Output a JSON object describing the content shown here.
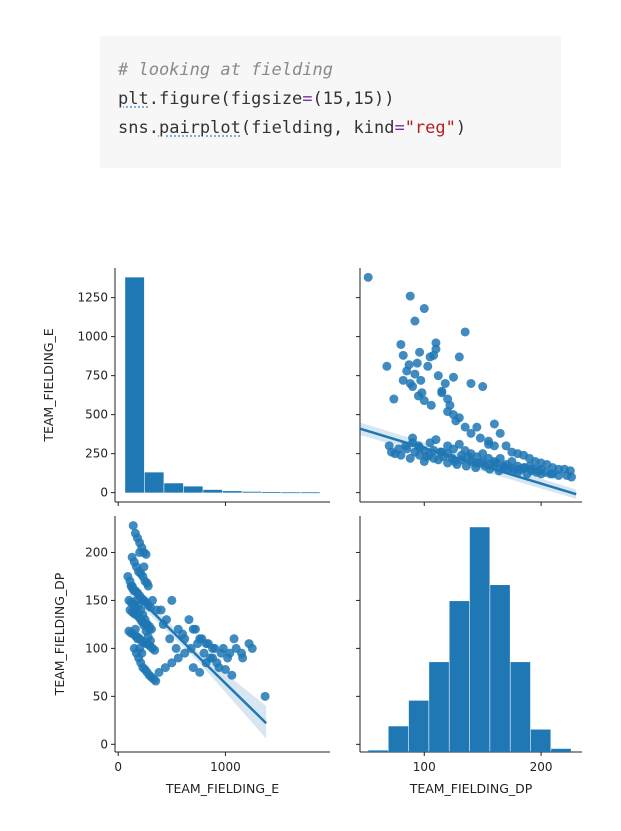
{
  "code": {
    "comment": "# looking at fielding",
    "line2": {
      "obj": "plt",
      "fn": "figure",
      "kw": "figsize",
      "args": "(15,15)"
    },
    "line3": {
      "obj": "sns",
      "fn": "pairplot",
      "arg": "fielding",
      "kw": "kind",
      "val": "\"reg\""
    }
  },
  "chart_data": {
    "type": "pairplot",
    "variables": [
      "TEAM_FIELDING_E",
      "TEAM_FIELDING_DP"
    ],
    "color": "#1f77b4",
    "panels": [
      {
        "id": "E-hist",
        "type": "bar",
        "title": "",
        "xlabel": "",
        "ylabel": "TEAM_FIELDING_E",
        "bins": [
          65,
          247,
          429,
          611,
          793,
          975,
          1157,
          1339,
          1521,
          1703,
          1885
        ],
        "counts": [
          1380,
          130,
          60,
          40,
          18,
          10,
          6,
          4,
          2,
          2
        ],
        "ylim": [
          -60,
          1440
        ],
        "yticks": [
          0,
          250,
          500,
          750,
          1000,
          1250
        ]
      },
      {
        "id": "E-vs-DP",
        "type": "scatter",
        "xvar": "TEAM_FIELDING_DP",
        "yvar": "TEAM_FIELDING_E",
        "xlim": [
          45,
          235
        ],
        "ylim": [
          -60,
          1440
        ],
        "x": [
          52,
          68,
          74,
          82,
          88,
          92,
          96,
          100,
          105,
          110,
          115,
          120,
          125,
          130,
          135,
          140,
          145,
          150,
          155,
          160,
          165,
          170,
          175,
          180,
          185,
          190,
          195,
          200,
          205,
          210,
          215,
          220,
          225,
          90,
          95,
          100,
          105,
          110,
          115,
          120,
          125,
          130,
          135,
          140,
          145,
          150,
          155,
          160,
          165,
          170,
          175,
          180,
          185,
          190,
          195,
          200,
          72,
          78,
          84,
          90,
          96,
          102,
          108,
          114,
          120,
          126,
          132,
          138,
          144,
          150,
          156,
          162,
          168,
          174,
          180,
          186,
          192,
          198,
          204,
          210,
          80,
          82,
          85,
          87,
          88,
          90,
          92,
          94,
          95,
          97,
          98,
          100,
          103,
          106,
          108,
          110,
          112,
          115,
          118,
          120,
          122,
          125,
          127,
          130,
          135,
          140,
          148,
          155,
          160,
          70,
          75,
          80,
          85,
          88,
          92,
          96,
          100,
          104,
          108,
          112,
          116,
          120,
          124,
          128,
          132,
          136,
          140,
          144,
          148,
          152,
          156,
          160,
          164,
          168,
          172,
          176,
          180,
          184,
          188,
          192,
          196,
          200,
          208,
          215,
          222,
          226
        ],
        "y": [
          1380,
          810,
          600,
          720,
          1260,
          1100,
          900,
          1180,
          870,
          960,
          650,
          520,
          740,
          870,
          1030,
          700,
          420,
          680,
          310,
          440,
          380,
          300,
          260,
          250,
          240,
          220,
          200,
          190,
          180,
          160,
          150,
          150,
          140,
          350,
          300,
          270,
          320,
          340,
          260,
          300,
          280,
          310,
          270,
          250,
          230,
          250,
          220,
          200,
          220,
          180,
          200,
          170,
          160,
          170,
          150,
          150,
          260,
          280,
          300,
          320,
          240,
          230,
          220,
          260,
          250,
          200,
          240,
          230,
          190,
          200,
          180,
          190,
          170,
          160,
          150,
          160,
          150,
          140,
          130,
          120,
          950,
          880,
          780,
          820,
          700,
          680,
          760,
          830,
          620,
          720,
          640,
          590,
          810,
          560,
          880,
          920,
          750,
          640,
          700,
          600,
          560,
          500,
          460,
          480,
          420,
          380,
          350,
          330,
          300,
          300,
          250,
          240,
          280,
          220,
          260,
          290,
          200,
          240,
          270,
          210,
          230,
          190,
          220,
          180,
          210,
          170,
          200,
          160,
          190,
          170,
          150,
          180,
          140,
          160,
          150,
          140,
          130,
          150,
          120,
          140,
          130,
          120,
          120,
          110,
          110,
          100
        ],
        "reg": {
          "x": [
            45,
            230
          ],
          "y": [
            410,
            -10
          ]
        }
      },
      {
        "id": "DP-vs-E",
        "type": "scatter",
        "xvar": "TEAM_FIELDING_E",
        "yvar": "TEAM_FIELDING_DP",
        "xlabel": "TEAM_FIELDING_E",
        "ylabel": "TEAM_FIELDING_DP",
        "xlim": [
          -30,
          1975
        ],
        "ylim": [
          -8,
          238
        ],
        "xticks": [
          0,
          1000
        ],
        "yticks": [
          0,
          50,
          100,
          150,
          200
        ],
        "x": [
          140,
          160,
          180,
          200,
          220,
          240,
          260,
          130,
          150,
          170,
          190,
          210,
          230,
          250,
          270,
          120,
          140,
          160,
          180,
          200,
          220,
          240,
          260,
          280,
          300,
          110,
          130,
          150,
          170,
          190,
          210,
          230,
          250,
          270,
          290,
          310,
          100,
          120,
          140,
          160,
          180,
          200,
          220,
          240,
          260,
          280,
          300,
          320,
          340,
          90,
          110,
          130,
          150,
          170,
          190,
          210,
          230,
          250,
          270,
          290,
          100,
          120,
          140,
          160,
          180,
          200,
          220,
          240,
          260,
          280,
          300,
          150,
          170,
          190,
          210,
          230,
          250,
          270,
          290,
          310,
          330,
          350,
          200,
          240,
          280,
          320,
          360,
          160,
          180,
          200,
          220,
          400,
          450,
          500,
          560,
          620,
          680,
          740,
          800,
          860,
          920,
          980,
          1040,
          1100,
          1160,
          1220,
          420,
          480,
          540,
          600,
          660,
          720,
          780,
          840,
          900,
          960,
          1020,
          1080,
          1150,
          1250,
          1370,
          380,
          440,
          500,
          560,
          620,
          700,
          760,
          820,
          880,
          940,
          1000,
          1060,
          700,
          760,
          820,
          880
        ],
        "y": [
          228,
          220,
          215,
          210,
          205,
          200,
          198,
          195,
          190,
          185,
          180,
          178,
          175,
          170,
          168,
          165,
          162,
          160,
          158,
          155,
          152,
          150,
          148,
          145,
          143,
          140,
          138,
          136,
          135,
          133,
          130,
          128,
          126,
          125,
          123,
          120,
          118,
          116,
          115,
          113,
          112,
          110,
          108,
          106,
          105,
          104,
          102,
          100,
          98,
          175,
          170,
          165,
          160,
          150,
          145,
          140,
          135,
          130,
          125,
          120,
          150,
          148,
          146,
          142,
          138,
          132,
          128,
          124,
          118,
          112,
          108,
          100,
          95,
          90,
          85,
          80,
          78,
          75,
          72,
          70,
          68,
          66,
          200,
          185,
          165,
          150,
          140,
          120,
          110,
          100,
          95,
          140,
          130,
          150,
          120,
          110,
          100,
          105,
          95,
          90,
          85,
          100,
          95,
          100,
          90,
          105,
          125,
          110,
          100,
          115,
          130,
          120,
          110,
          105,
          100,
          95,
          90,
          110,
          95,
          100,
          50,
          75,
          80,
          85,
          90,
          95,
          80,
          75,
          85,
          90,
          80,
          78,
          72,
          120,
          110,
          105,
          100
        ],
        "reg": {
          "x": [
            100,
            1380
          ],
          "y": [
            162,
            22
          ]
        }
      },
      {
        "id": "DP-hist",
        "type": "bar",
        "title": "",
        "xlabel": "TEAM_FIELDING_DP",
        "ylabel": "",
        "bins": [
          52,
          69.4,
          86.8,
          104.2,
          121.6,
          139,
          156.4,
          173.8,
          191.2,
          208.6,
          226
        ],
        "counts": [
          5,
          80,
          160,
          280,
          470,
          700,
          520,
          280,
          70,
          10
        ],
        "xlim": [
          45,
          235
        ],
        "ymax": 735,
        "xticks": [
          100,
          200
        ]
      }
    ]
  }
}
